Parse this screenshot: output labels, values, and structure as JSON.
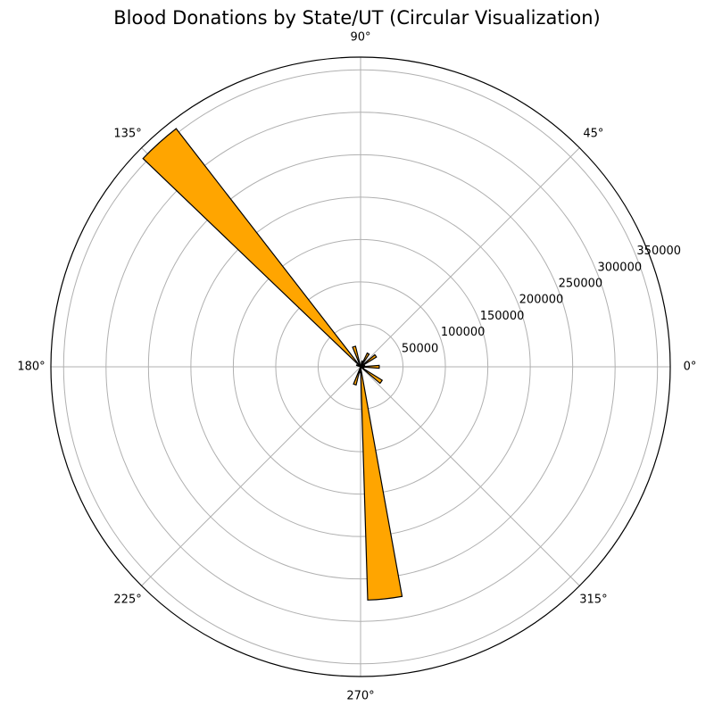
{
  "chart_data": {
    "type": "polar-bar",
    "title": "Blood Donations by State/UT (Circular Visualization)",
    "theta_ticks": [
      0,
      45,
      90,
      135,
      180,
      225,
      270,
      315
    ],
    "theta_tick_labels": [
      "0°",
      "45°",
      "90°",
      "135°",
      "180°",
      "225°",
      "270°",
      "315°"
    ],
    "r_ticks": [
      50000,
      100000,
      150000,
      200000,
      250000,
      300000,
      350000
    ],
    "r_tick_labels": [
      "50000",
      "100000",
      "150000",
      "200000",
      "250000",
      "300000",
      "350000"
    ],
    "r_label_angle_deg": 22.5,
    "rlim": [
      0,
      365000
    ],
    "grid": true,
    "bar_color": "#FFA500",
    "bar_edge_color": "#000000",
    "bars": [
      {
        "theta_deg": 0,
        "value": 22000
      },
      {
        "theta_deg": 12,
        "value": 5000
      },
      {
        "theta_deg": 24,
        "value": 3000
      },
      {
        "theta_deg": 36,
        "value": 22000
      },
      {
        "theta_deg": 60,
        "value": 18000
      },
      {
        "theta_deg": 72,
        "value": 7000
      },
      {
        "theta_deg": 108,
        "value": 25000
      },
      {
        "theta_deg": 132,
        "value": 355000
      },
      {
        "theta_deg": 156,
        "value": 5000
      },
      {
        "theta_deg": 252,
        "value": 22000
      },
      {
        "theta_deg": 264,
        "value": 7000
      },
      {
        "theta_deg": 276,
        "value": 275000
      },
      {
        "theta_deg": 324,
        "value": 30000
      },
      {
        "theta_deg": 348,
        "value": 4000
      }
    ],
    "bar_width_deg": 8.5
  }
}
